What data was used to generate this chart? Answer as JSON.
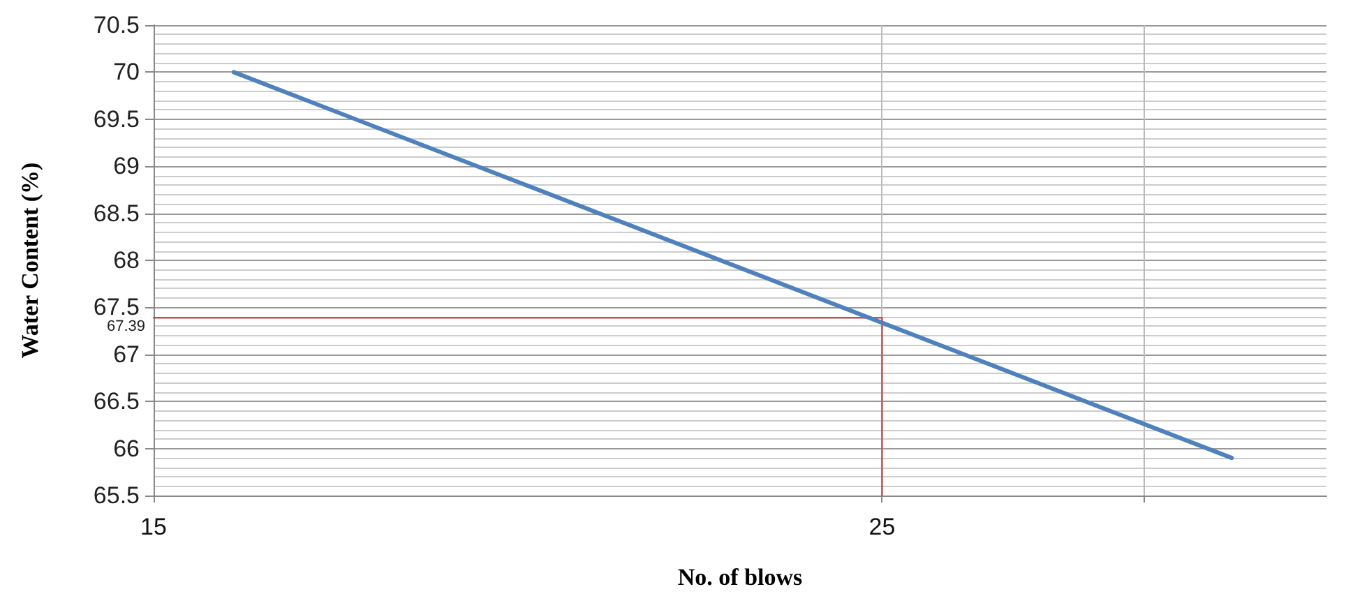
{
  "chart_data": {
    "type": "line",
    "xlabel": "No. of blows",
    "ylabel": "Water Content (%)",
    "series": [
      {
        "color": "#4f81bd",
        "x": [
          16.1,
          29.8
        ],
        "values": [
          70.0,
          65.9
        ]
      },
      {
        "color": "#c0504d",
        "x": [
          15,
          25,
          25
        ],
        "values": [
          67.39,
          67.39,
          65.5
        ]
      }
    ],
    "annotations": [
      {
        "text": "67.39",
        "x": 15,
        "y": 67.39
      }
    ],
    "xlim": [
      15,
      31.1
    ],
    "xticks": [
      15,
      25,
      {
        "value": 28.6,
        "label": null
      }
    ],
    "ylim": [
      65.5,
      70.5
    ],
    "yticks": [
      65.5,
      66,
      66.5,
      67,
      67.5,
      68,
      68.5,
      69,
      69.5,
      70,
      70.5
    ],
    "grid": true,
    "marker": "none",
    "line_style": "solid"
  }
}
